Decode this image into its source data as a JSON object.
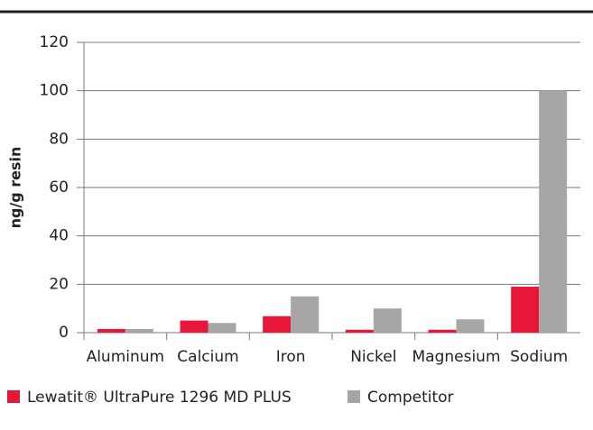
{
  "chart_data": {
    "type": "bar",
    "categories": [
      "Aluminum",
      "Calcium",
      "Iron",
      "Nickel",
      "Magnesium",
      "Sodium"
    ],
    "series": [
      {
        "name": "Lewatit® UltraPure 1296 MD PLUS",
        "color": "#e8173a",
        "values": [
          1.5,
          5,
          6.8,
          1.2,
          1.2,
          19
        ]
      },
      {
        "name": "Competitor",
        "color": "#a6a6a6",
        "values": [
          1.5,
          4,
          15,
          10,
          5.5,
          100
        ]
      }
    ],
    "y_label": "ng/g resin",
    "ylim": [
      0,
      120
    ],
    "yticks": [
      0,
      20,
      40,
      60,
      80,
      100,
      120
    ],
    "grid": true,
    "legend": "bottom"
  }
}
